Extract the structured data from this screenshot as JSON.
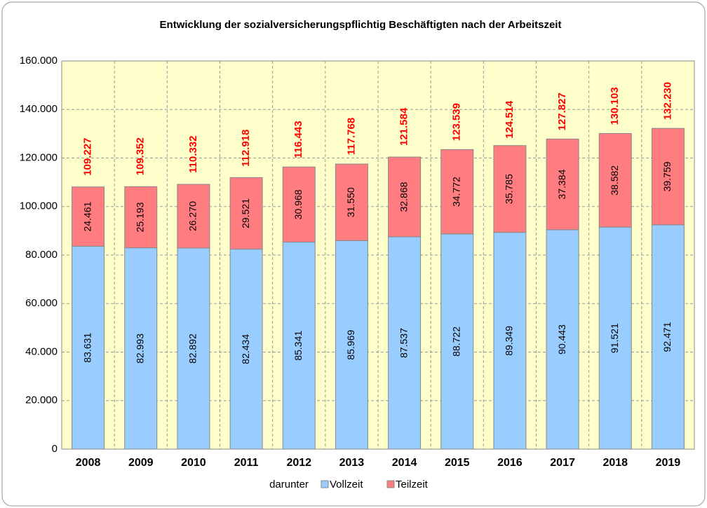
{
  "chart_data": {
    "type": "stacked_bar",
    "title": "Entwicklung der sozialversicherungspflichtig Beschäftigten nach der Arbeitszeit",
    "categories": [
      "2008",
      "2009",
      "2010",
      "2011",
      "2012",
      "2013",
      "2014",
      "2015",
      "2016",
      "2017",
      "2018",
      "2019"
    ],
    "legend_title": "darunter",
    "series": [
      {
        "name": "Vollzeit",
        "color": "#99ccff",
        "values": [
          83631,
          82993,
          82892,
          82434,
          85341,
          85969,
          87537,
          88722,
          89349,
          90443,
          91521,
          92471
        ],
        "value_labels": [
          "83.631",
          "82.993",
          "82.892",
          "82.434",
          "85.341",
          "85.969",
          "87.537",
          "88.722",
          "89.349",
          "90.443",
          "91.521",
          "92.471"
        ]
      },
      {
        "name": "Teilzeit",
        "color": "#ff7c80",
        "values": [
          24461,
          25193,
          26270,
          29521,
          30968,
          31550,
          32868,
          34772,
          35785,
          37384,
          38582,
          39759
        ],
        "value_labels": [
          "24.461",
          "25.193",
          "26.270",
          "29.521",
          "30.968",
          "31.550",
          "32.868",
          "34.772",
          "35.785",
          "37.384",
          "38.582",
          "39.759"
        ]
      }
    ],
    "totals": {
      "color": "#ff0000",
      "values": [
        109227,
        109352,
        110332,
        112918,
        116443,
        117768,
        121584,
        123539,
        124514,
        127827,
        130103,
        132230
      ],
      "value_labels": [
        "109.227",
        "109.352",
        "110.332",
        "112.918",
        "116.443",
        "117.768",
        "121.584",
        "123.539",
        "124.514",
        "127.827",
        "130.103",
        "132.230"
      ]
    },
    "ylim": [
      0,
      160000
    ],
    "yticks": [
      0,
      {
        "value": 20000,
        "label": "20.000"
      },
      {
        "value": 40000,
        "label": "40.000"
      },
      {
        "value": 60000,
        "label": "60.000"
      },
      {
        "value": 80000,
        "label": "80.000"
      },
      {
        "value": 100000,
        "label": "100.000"
      },
      {
        "value": 120000,
        "label": "120.000"
      },
      {
        "value": 140000,
        "label": "140.000"
      },
      {
        "value": 160000,
        "label": "160.000"
      }
    ],
    "grid": true
  }
}
